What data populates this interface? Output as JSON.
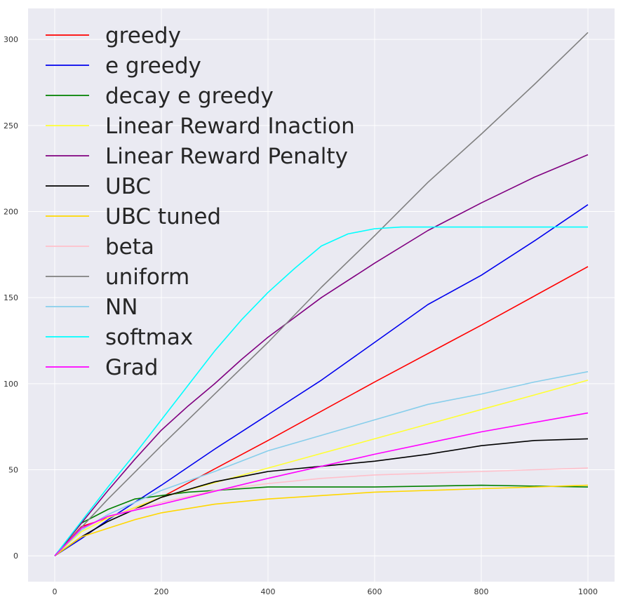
{
  "chart_data": {
    "type": "line",
    "title": "",
    "xlabel": "",
    "ylabel": "",
    "xlim": [
      -50,
      1050
    ],
    "ylim": [
      -15,
      318
    ],
    "x_ticks": [
      0,
      200,
      400,
      600,
      800,
      1000
    ],
    "y_ticks": [
      0,
      50,
      100,
      150,
      200,
      250,
      300
    ],
    "grid": true,
    "background": "#eaeaf2",
    "grid_color": "#ffffff",
    "legend_position": "upper-left",
    "series": [
      {
        "name": "greedy",
        "color": "#ff0000",
        "x": [
          0,
          50,
          100,
          200,
          400,
          600,
          800,
          1000
        ],
        "y": [
          0,
          17,
          22,
          34,
          67,
          101,
          134,
          168
        ]
      },
      {
        "name": "e greedy",
        "color": "#0000ee",
        "x": [
          0,
          50,
          100,
          150,
          200,
          300,
          400,
          500,
          600,
          700,
          800,
          900,
          1000
        ],
        "y": [
          0,
          10,
          21,
          31,
          41,
          62,
          82,
          102,
          124,
          146,
          163,
          183,
          204
        ]
      },
      {
        "name": "decay e greedy",
        "color": "#008000",
        "x": [
          0,
          50,
          100,
          150,
          200,
          250,
          300,
          400,
          500,
          600,
          800,
          1000
        ],
        "y": [
          0,
          19,
          27,
          33,
          35,
          37,
          38,
          40,
          40,
          40,
          41,
          40
        ]
      },
      {
        "name": "Linear Reward Inaction",
        "color": "#ffff33",
        "x": [
          0,
          50,
          100,
          200,
          400,
          600,
          800,
          1000
        ],
        "y": [
          0,
          14,
          22,
          34,
          51,
          68,
          85,
          102
        ]
      },
      {
        "name": "Linear Reward Penalty",
        "color": "#800080",
        "x": [
          0,
          50,
          100,
          150,
          200,
          250,
          300,
          350,
          400,
          500,
          600,
          700,
          800,
          900,
          1000
        ],
        "y": [
          0,
          19,
          38,
          56,
          73,
          87,
          100,
          114,
          127,
          150,
          170,
          189,
          205,
          220,
          233
        ]
      },
      {
        "name": "UBC",
        "color": "#000000",
        "x": [
          0,
          50,
          100,
          150,
          200,
          300,
          400,
          500,
          600,
          700,
          800,
          900,
          1000
        ],
        "y": [
          0,
          11,
          20,
          27,
          34,
          43,
          49,
          52,
          55,
          59,
          64,
          67,
          68
        ]
      },
      {
        "name": "UBC tuned",
        "color": "#ffd700",
        "x": [
          0,
          50,
          100,
          150,
          200,
          300,
          400,
          500,
          600,
          700,
          800,
          900,
          1000
        ],
        "y": [
          0,
          11,
          16,
          21,
          25,
          30,
          33,
          35,
          37,
          38,
          39,
          40,
          41
        ]
      },
      {
        "name": "beta",
        "color": "#ffc0cb",
        "x": [
          0,
          50,
          100,
          200,
          300,
          400,
          500,
          600,
          700,
          800,
          900,
          1000
        ],
        "y": [
          0,
          15,
          23,
          31,
          38,
          42,
          45,
          47,
          48,
          49,
          50,
          51
        ]
      },
      {
        "name": "uniform",
        "color": "#808080",
        "x": [
          0,
          100,
          200,
          300,
          400,
          500,
          600,
          700,
          800,
          900,
          1000
        ],
        "y": [
          0,
          33,
          64,
          94,
          124,
          156,
          186,
          217,
          245,
          274,
          304
        ]
      },
      {
        "name": "NN",
        "color": "#87ceeb",
        "x": [
          0,
          50,
          100,
          200,
          300,
          400,
          500,
          600,
          700,
          800,
          900,
          1000
        ],
        "y": [
          0,
          15,
          24,
          38,
          49,
          61,
          70,
          79,
          88,
          94,
          101,
          107
        ]
      },
      {
        "name": "softmax",
        "color": "#00ffff",
        "x": [
          0,
          50,
          100,
          150,
          200,
          250,
          300,
          350,
          400,
          450,
          500,
          550,
          600,
          650,
          700,
          800,
          900,
          1000
        ],
        "y": [
          0,
          20,
          40,
          59,
          79,
          99,
          119,
          137,
          153,
          167,
          180,
          187,
          190,
          191,
          191,
          191,
          191,
          191
        ]
      },
      {
        "name": "Grad",
        "color": "#ff00ff",
        "x": [
          0,
          50,
          100,
          200,
          400,
          600,
          800,
          1000
        ],
        "y": [
          0,
          16,
          23,
          30,
          45,
          59,
          72,
          83
        ]
      }
    ]
  }
}
